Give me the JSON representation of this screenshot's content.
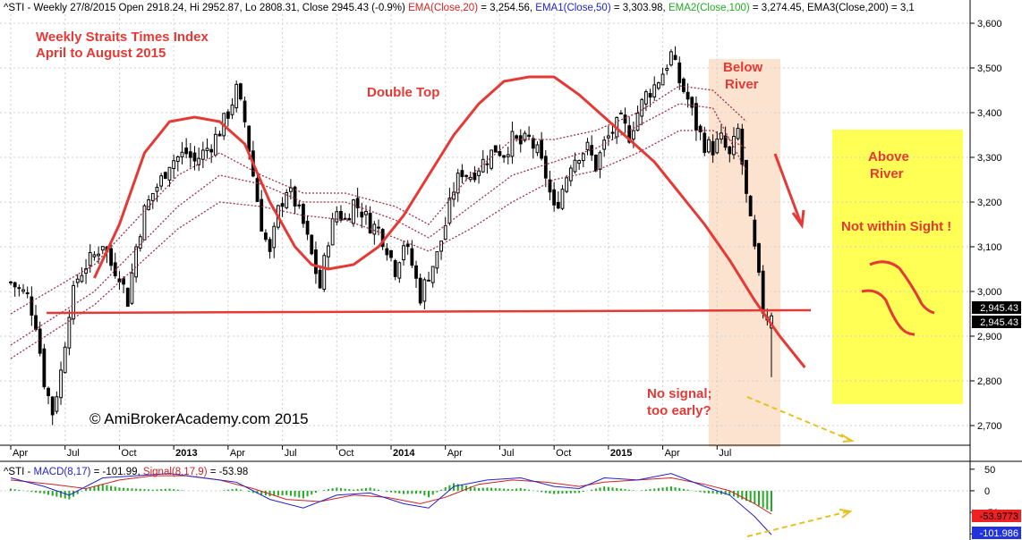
{
  "header": {
    "parts": [
      {
        "text": "^STI - Weekly 27/8/2015 Open 2918.24, Hi 2952.87, Lo 2808.31, Close 2945.43 (-0.9%) ",
        "color": "#000000"
      },
      {
        "text": "EMA(Close,20)",
        "color": "#cc2222"
      },
      {
        "text": " = 3,254.56, ",
        "color": "#000000"
      },
      {
        "text": "EMA1(Close,50)",
        "color": "#2222cc"
      },
      {
        "text": " = 3,303.98, ",
        "color": "#000000"
      },
      {
        "text": "EMA2(Close,100)",
        "color": "#22aa22"
      },
      {
        "text": " = 3,274.45, EMA3(Close,200) = 3,1",
        "color": "#000000"
      }
    ]
  },
  "annotations": {
    "title_line1": "Weekly Straits Times Index",
    "title_line2": "April to August 2015",
    "double_top": "Double Top",
    "below_river_1": "Below",
    "below_river_2": "River",
    "above_river_1": "Above",
    "above_river_2": "River",
    "not_within_sight": "Not within Sight !",
    "no_signal_1": "No signal;",
    "no_signal_2": "too early?",
    "copyright": "© AmiBrokerAcademy.com 2015"
  },
  "macd_header": {
    "parts": [
      {
        "text": "^STI - ",
        "color": "#000000"
      },
      {
        "text": "MACD(8,17)",
        "color": "#2222cc"
      },
      {
        "text": " = -101.99, ",
        "color": "#000000"
      },
      {
        "text": "Signal(8,17,9)",
        "color": "#cc2222"
      },
      {
        "text": " = -53.98",
        "color": "#000000"
      }
    ]
  },
  "colors": {
    "annotation": "#e53935",
    "channel": "#a0304a",
    "river_band": "#fbe3d0",
    "yellow_box": "#ffff55",
    "macd_hist": "#22aa22",
    "macd_line": "#2222cc",
    "signal_line": "#cc2222",
    "arrow_yellow": "#e8c020"
  },
  "chart_data": [
    {
      "type": "candlestick",
      "title": "Weekly Straits Times Index",
      "subtitle": "April to August 2015",
      "y_ticks": [
        "3,600",
        "3,500",
        "3,400",
        "3,300",
        "3,200",
        "3,100",
        "3,000",
        "2,900",
        "2,800",
        "2,700"
      ],
      "y_tick_values": [
        3600,
        3500,
        3400,
        3300,
        3200,
        3100,
        3000,
        2900,
        2800,
        2700
      ],
      "ylim": [
        2660,
        3620
      ],
      "x_ticks": [
        "Apr",
        "Jul",
        "Oct",
        "2013",
        "Apr",
        "Jul",
        "Oct",
        "2014",
        "Apr",
        "Jul",
        "Oct",
        "2015",
        "Apr",
        "Jul"
      ],
      "x_tick_weeks": [
        0,
        13,
        26,
        39,
        52,
        65,
        78,
        91,
        104,
        117,
        130,
        143,
        156,
        169
      ],
      "bold_ticks": [
        "2013",
        "2014",
        "2015"
      ],
      "x_labels_shown": [
        "Apr",
        "Jul",
        "Oct",
        "2013",
        "Apr",
        "Jul",
        "Oct",
        "2014",
        "Apr",
        "Jul",
        "Oct",
        "2015",
        "Apr",
        "Jul"
      ],
      "close_label": "2,945.43",
      "last_close": 2945.43,
      "support_level": 2950,
      "close_path": [
        [
          0,
          3020
        ],
        [
          4,
          2990
        ],
        [
          6,
          2930
        ],
        [
          8,
          2800
        ],
        [
          10,
          2730
        ],
        [
          12,
          2820
        ],
        [
          14,
          2960
        ],
        [
          16,
          3030
        ],
        [
          18,
          3060
        ],
        [
          20,
          3080
        ],
        [
          22,
          3110
        ],
        [
          24,
          3060
        ],
        [
          26,
          3040
        ],
        [
          28,
          2980
        ],
        [
          30,
          3100
        ],
        [
          32,
          3180
        ],
        [
          34,
          3220
        ],
        [
          36,
          3250
        ],
        [
          38,
          3290
        ],
        [
          40,
          3300
        ],
        [
          42,
          3310
        ],
        [
          44,
          3290
        ],
        [
          46,
          3310
        ],
        [
          48,
          3330
        ],
        [
          50,
          3360
        ],
        [
          52,
          3400
        ],
        [
          54,
          3450
        ],
        [
          56,
          3380
        ],
        [
          58,
          3260
        ],
        [
          60,
          3150
        ],
        [
          62,
          3080
        ],
        [
          64,
          3180
        ],
        [
          66,
          3230
        ],
        [
          68,
          3200
        ],
        [
          70,
          3150
        ],
        [
          72,
          3080
        ],
        [
          74,
          3010
        ],
        [
          76,
          3120
        ],
        [
          78,
          3180
        ],
        [
          80,
          3160
        ],
        [
          82,
          3200
        ],
        [
          84,
          3180
        ],
        [
          86,
          3150
        ],
        [
          88,
          3140
        ],
        [
          90,
          3100
        ],
        [
          92,
          3050
        ],
        [
          94,
          3110
        ],
        [
          96,
          3060
        ],
        [
          98,
          2990
        ],
        [
          100,
          3040
        ],
        [
          102,
          3080
        ],
        [
          104,
          3150
        ],
        [
          106,
          3230
        ],
        [
          108,
          3270
        ],
        [
          110,
          3260
        ],
        [
          112,
          3280
        ],
        [
          114,
          3300
        ],
        [
          116,
          3320
        ],
        [
          118,
          3310
        ],
        [
          120,
          3340
        ],
        [
          122,
          3330
        ],
        [
          124,
          3340
        ],
        [
          126,
          3310
        ],
        [
          128,
          3260
        ],
        [
          130,
          3180
        ],
        [
          132,
          3230
        ],
        [
          134,
          3290
        ],
        [
          136,
          3310
        ],
        [
          138,
          3320
        ],
        [
          140,
          3280
        ],
        [
          142,
          3330
        ],
        [
          144,
          3360
        ],
        [
          146,
          3380
        ],
        [
          148,
          3350
        ],
        [
          150,
          3400
        ],
        [
          152,
          3440
        ],
        [
          154,
          3460
        ],
        [
          156,
          3490
        ],
        [
          158,
          3530
        ],
        [
          160,
          3470
        ],
        [
          162,
          3430
        ],
        [
          164,
          3370
        ],
        [
          166,
          3330
        ],
        [
          168,
          3320
        ],
        [
          170,
          3340
        ],
        [
          172,
          3300
        ],
        [
          174,
          3360
        ],
        [
          176,
          3210
        ],
        [
          178,
          3090
        ],
        [
          180,
          2960
        ],
        [
          181,
          2945
        ]
      ],
      "ema_upper": [
        [
          0,
          2950
        ],
        [
          20,
          3060
        ],
        [
          40,
          3260
        ],
        [
          50,
          3310
        ],
        [
          60,
          3260
        ],
        [
          70,
          3220
        ],
        [
          80,
          3220
        ],
        [
          92,
          3190
        ],
        [
          100,
          3150
        ],
        [
          110,
          3260
        ],
        [
          120,
          3340
        ],
        [
          130,
          3340
        ],
        [
          140,
          3360
        ],
        [
          150,
          3400
        ],
        [
          160,
          3460
        ],
        [
          168,
          3450
        ],
        [
          176,
          3380
        ]
      ],
      "ema_middle": [
        [
          0,
          2880
        ],
        [
          20,
          3000
        ],
        [
          40,
          3190
        ],
        [
          50,
          3260
        ],
        [
          60,
          3240
        ],
        [
          70,
          3200
        ],
        [
          80,
          3200
        ],
        [
          92,
          3160
        ],
        [
          100,
          3120
        ],
        [
          110,
          3190
        ],
        [
          120,
          3260
        ],
        [
          130,
          3290
        ],
        [
          140,
          3320
        ],
        [
          150,
          3370
        ],
        [
          160,
          3420
        ],
        [
          168,
          3410
        ],
        [
          176,
          3270
        ]
      ],
      "ema_lower": [
        [
          0,
          2850
        ],
        [
          20,
          2970
        ],
        [
          40,
          3140
        ],
        [
          50,
          3200
        ],
        [
          60,
          3190
        ],
        [
          70,
          3170
        ],
        [
          80,
          3160
        ],
        [
          92,
          3120
        ],
        [
          100,
          3090
        ],
        [
          110,
          3140
        ],
        [
          120,
          3200
        ],
        [
          130,
          3250
        ],
        [
          140,
          3270
        ],
        [
          150,
          3310
        ],
        [
          160,
          3360
        ],
        [
          168,
          3360
        ],
        [
          176,
          3320
        ]
      ],
      "double_top_curve": [
        [
          20,
          3030
        ],
        [
          26,
          3150
        ],
        [
          32,
          3310
        ],
        [
          38,
          3380
        ],
        [
          44,
          3390
        ],
        [
          50,
          3380
        ],
        [
          56,
          3330
        ],
        [
          62,
          3200
        ],
        [
          68,
          3100
        ],
        [
          72,
          3060
        ],
        [
          76,
          3050
        ],
        [
          82,
          3060
        ],
        [
          88,
          3100
        ],
        [
          94,
          3170
        ],
        [
          100,
          3260
        ],
        [
          106,
          3350
        ],
        [
          112,
          3420
        ],
        [
          118,
          3470
        ],
        [
          124,
          3480
        ],
        [
          130,
          3480
        ],
        [
          136,
          3440
        ],
        [
          142,
          3390
        ],
        [
          148,
          3340
        ],
        [
          154,
          3290
        ],
        [
          160,
          3220
        ],
        [
          166,
          3150
        ],
        [
          172,
          3070
        ],
        [
          178,
          2980
        ],
        [
          184,
          2900
        ],
        [
          190,
          2830
        ]
      ]
    },
    {
      "type": "line",
      "title": "MACD(8,17)",
      "y_ticks": [
        "50",
        "0",
        "-50",
        "-100"
      ],
      "y_tick_values": [
        50,
        0,
        -50,
        -100
      ],
      "ylim": [
        -110,
        60
      ],
      "macd_label": "-101.986",
      "signal_label": "-53.9773",
      "macd": [
        [
          0,
          30
        ],
        [
          8,
          10
        ],
        [
          14,
          -10
        ],
        [
          22,
          30
        ],
        [
          30,
          35
        ],
        [
          38,
          40
        ],
        [
          46,
          30
        ],
        [
          54,
          20
        ],
        [
          62,
          -20
        ],
        [
          70,
          -40
        ],
        [
          78,
          -10
        ],
        [
          86,
          -5
        ],
        [
          94,
          -30
        ],
        [
          100,
          -40
        ],
        [
          106,
          10
        ],
        [
          114,
          25
        ],
        [
          122,
          30
        ],
        [
          130,
          10
        ],
        [
          136,
          5
        ],
        [
          142,
          30
        ],
        [
          150,
          25
        ],
        [
          158,
          40
        ],
        [
          166,
          10
        ],
        [
          172,
          -10
        ],
        [
          178,
          -60
        ],
        [
          182,
          -102
        ]
      ],
      "signal": [
        [
          0,
          25
        ],
        [
          10,
          15
        ],
        [
          18,
          5
        ],
        [
          26,
          25
        ],
        [
          34,
          35
        ],
        [
          42,
          35
        ],
        [
          50,
          25
        ],
        [
          58,
          5
        ],
        [
          66,
          -20
        ],
        [
          74,
          -25
        ],
        [
          82,
          -10
        ],
        [
          90,
          -15
        ],
        [
          98,
          -30
        ],
        [
          104,
          -15
        ],
        [
          112,
          15
        ],
        [
          120,
          25
        ],
        [
          128,
          20
        ],
        [
          136,
          10
        ],
        [
          142,
          20
        ],
        [
          150,
          25
        ],
        [
          158,
          30
        ],
        [
          166,
          15
        ],
        [
          172,
          0
        ],
        [
          178,
          -30
        ],
        [
          182,
          -54
        ]
      ]
    }
  ]
}
